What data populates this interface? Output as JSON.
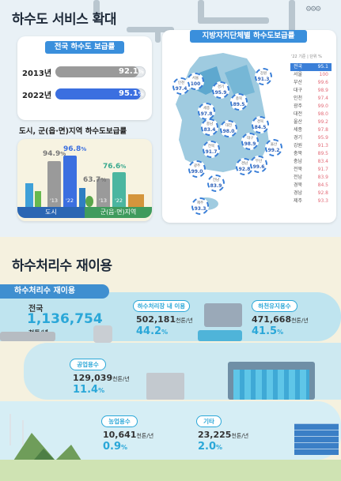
{
  "section1": {
    "title": "하수도 서비스 확대",
    "national": {
      "heading": "전국 하수도 보급률",
      "rows": [
        {
          "year": "2013년",
          "value": "92.1",
          "unit": "%",
          "fraction": 0.921,
          "color": "#9a9a9a"
        },
        {
          "year": "2022년",
          "value": "95.1",
          "unit": "%",
          "fraction": 0.951,
          "color": "#3b6fe0"
        }
      ]
    },
    "urban_rural": {
      "heading": "도시, 군(읍·면)지역 하수도보급률",
      "groups": [
        {
          "label": "도시",
          "y2013": "94.9",
          "y2022": "96.8",
          "unit": "%",
          "year1": "'13",
          "year2": "'22"
        },
        {
          "label": "군(읍·면)지역",
          "y2013": "63.7",
          "y2022": "76.6",
          "unit": "%",
          "year1": "'13",
          "year2": "'22"
        }
      ]
    },
    "regional": {
      "heading": "지방자치단체별 하수도보급률",
      "note": "'22 기준 | 단위 %",
      "rows": [
        {
          "name": "전국",
          "value": "95.1"
        },
        {
          "name": "서울",
          "value": "100"
        },
        {
          "name": "부산",
          "value": "99.6"
        },
        {
          "name": "대구",
          "value": "98.9"
        },
        {
          "name": "인천",
          "value": "97.4"
        },
        {
          "name": "광주",
          "value": "99.0"
        },
        {
          "name": "대전",
          "value": "98.0"
        },
        {
          "name": "울산",
          "value": "99.2"
        },
        {
          "name": "세종",
          "value": "97.8"
        },
        {
          "name": "경기",
          "value": "95.9"
        },
        {
          "name": "강원",
          "value": "91.3"
        },
        {
          "name": "충북",
          "value": "89.5"
        },
        {
          "name": "충남",
          "value": "83.4"
        },
        {
          "name": "전북",
          "value": "91.7"
        },
        {
          "name": "전남",
          "value": "83.9"
        },
        {
          "name": "경북",
          "value": "84.5"
        },
        {
          "name": "경남",
          "value": "92.8"
        },
        {
          "name": "제주",
          "value": "93.3"
        }
      ],
      "map_circles": [
        {
          "name": "서울",
          "value": "100"
        },
        {
          "name": "인천",
          "value": "97.4"
        },
        {
          "name": "경기",
          "value": "95.9"
        },
        {
          "name": "강원",
          "value": "91.3"
        },
        {
          "name": "세종",
          "value": "97.8"
        },
        {
          "name": "충북",
          "value": "89.5"
        },
        {
          "name": "충남",
          "value": "83.4"
        },
        {
          "name": "대전",
          "value": "98.0"
        },
        {
          "name": "경북",
          "value": "84.5"
        },
        {
          "name": "전북",
          "value": "91.7"
        },
        {
          "name": "대구",
          "value": "98.9"
        },
        {
          "name": "울산",
          "value": "99.2"
        },
        {
          "name": "광주",
          "value": "99.0"
        },
        {
          "name": "경남",
          "value": "92.8"
        },
        {
          "name": "부산",
          "value": "99.6"
        },
        {
          "name": "전남",
          "value": "83.9"
        },
        {
          "name": "제주",
          "value": "93.3"
        }
      ]
    }
  },
  "section2": {
    "title": "하수처리수 재이용",
    "badge": "하수처리수 재이용",
    "total_label": "전국",
    "total_value": "1,136,754",
    "total_unit": "천톤/년",
    "items": [
      {
        "tag": "하수처리장 내 이용",
        "value": "502,181",
        "unit": "천톤/년",
        "pct": "44.2",
        "pct_unit": "%"
      },
      {
        "tag": "하천유지용수",
        "value": "471,668",
        "unit": "천톤/년",
        "pct": "41.5",
        "pct_unit": "%"
      },
      {
        "tag": "공업용수",
        "value": "129,039",
        "unit": "천톤/년",
        "pct": "11.4",
        "pct_unit": "%"
      },
      {
        "tag": "농업용수",
        "value": "10,641",
        "unit": "천톤/년",
        "pct": "0.9",
        "pct_unit": "%"
      },
      {
        "tag": "기타",
        "value": "23,225",
        "unit": "천톤/년",
        "pct": "2.0",
        "pct_unit": "%"
      }
    ]
  },
  "colors": {
    "accent": "#3a8fdc",
    "teal": "#2aa7d8",
    "bar2013": "#9a9a9a",
    "bar2022": "#3b6fe0",
    "regional_value": "#e36b78"
  }
}
